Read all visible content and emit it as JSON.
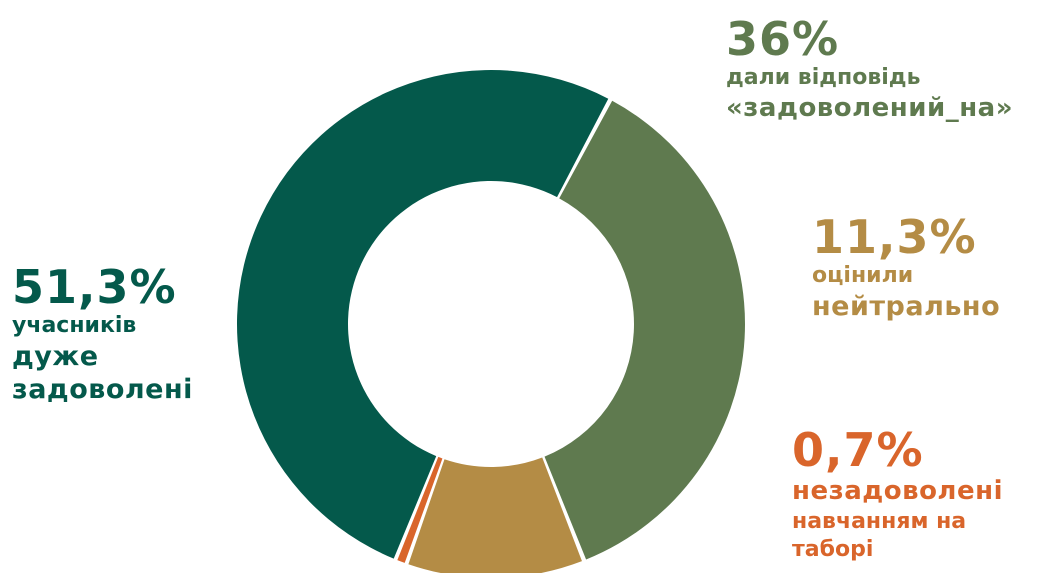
{
  "chart_data": {
    "type": "pie",
    "variant": "donut",
    "title": "",
    "categories": [
      "задоволений_на",
      "нейтрально",
      "незадоволені навчанням на таборі",
      "дуже задоволені"
    ],
    "values": [
      36,
      11.3,
      0.7,
      51.3
    ],
    "colors": [
      "#5f7a4f",
      "#b48c45",
      "#d9652b",
      "#04594b"
    ],
    "legend": "none"
  },
  "callouts": {
    "satisfied": {
      "percent": "36%",
      "line1": "дали відповідь",
      "line2": "«задоволений_на»"
    },
    "neutral": {
      "percent": "11,3%",
      "line1": "оцінили",
      "line2": "нейтрально"
    },
    "very_satisfied": {
      "percent": "51,3%",
      "line1": "учасників",
      "line2": "дуже",
      "line3": "задоволені"
    },
    "dissatisfied": {
      "percent": "0,7%",
      "line1": "незадоволені",
      "line2": "навчанням на",
      "line3": "таборі"
    }
  }
}
